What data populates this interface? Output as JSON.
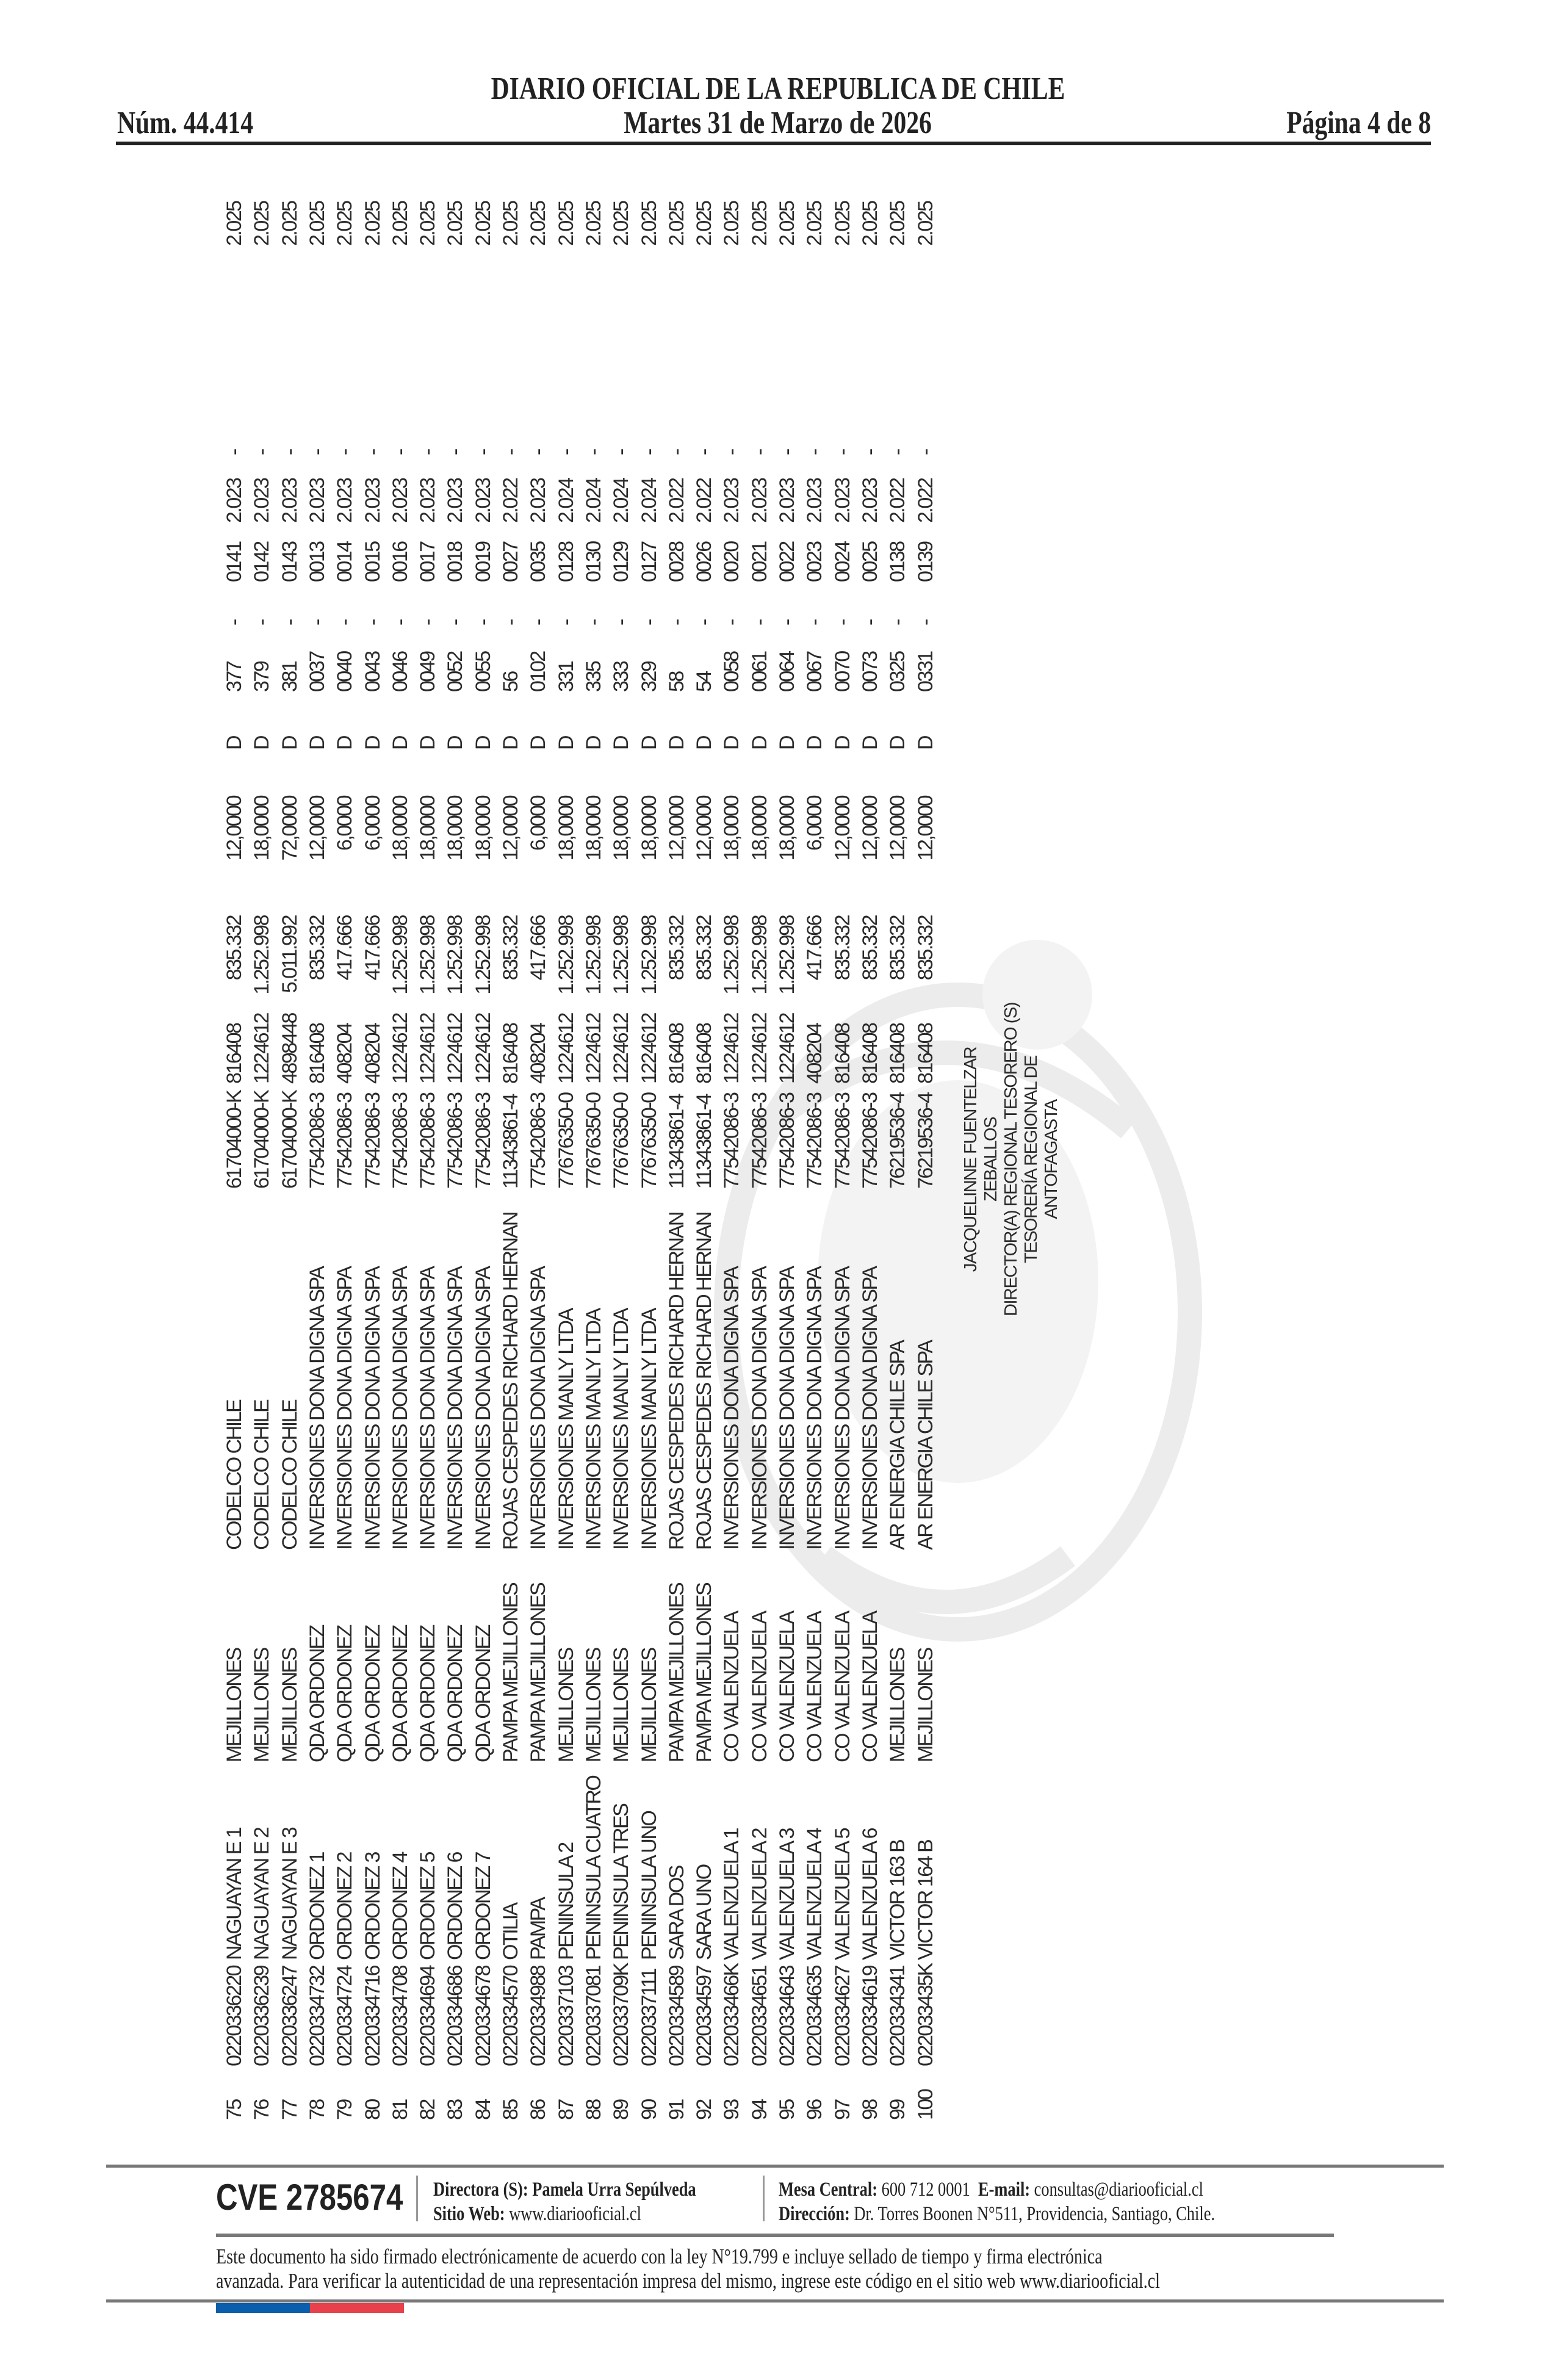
{
  "header": {
    "title": "DIARIO OFICIAL DE LA REPUBLICA DE CHILE",
    "issue_number": "Núm. 44.414",
    "date": "Martes 31 de Marzo de 2026",
    "page": "Página 4 de 8"
  },
  "table": {
    "rows": [
      [
        "75",
        "0220336220",
        "NAGUAYAN E 1",
        "MEJILLONES",
        "CODELCO CHILE",
        "61704000-K",
        "816408",
        "835.332",
        "12,0000",
        "D",
        "377",
        "-",
        "0141",
        "2.023",
        "-",
        "2.025"
      ],
      [
        "76",
        "0220336239",
        "NAGUAYAN E 2",
        "MEJILLONES",
        "CODELCO CHILE",
        "61704000-K",
        "1224612",
        "1.252.998",
        "18,0000",
        "D",
        "379",
        "-",
        "0142",
        "2.023",
        "-",
        "2.025"
      ],
      [
        "77",
        "0220336247",
        "NAGUAYAN E 3",
        "MEJILLONES",
        "CODELCO CHILE",
        "61704000-K",
        "4898448",
        "5.011.992",
        "72,0000",
        "D",
        "381",
        "-",
        "0143",
        "2.023",
        "-",
        "2.025"
      ],
      [
        "78",
        "0220334732",
        "ORDONEZ 1",
        "QDA ORDONEZ",
        "INVERSIONES DONA DIGNA SPA",
        "77542086-3",
        "816408",
        "835.332",
        "12,0000",
        "D",
        "0037",
        "-",
        "0013",
        "2.023",
        "-",
        "2.025"
      ],
      [
        "79",
        "0220334724",
        "ORDONEZ 2",
        "QDA ORDONEZ",
        "INVERSIONES DONA DIGNA SPA",
        "77542086-3",
        "408204",
        "417.666",
        "6,0000",
        "D",
        "0040",
        "-",
        "0014",
        "2.023",
        "-",
        "2.025"
      ],
      [
        "80",
        "0220334716",
        "ORDONEZ 3",
        "QDA ORDONEZ",
        "INVERSIONES DONA DIGNA SPA",
        "77542086-3",
        "408204",
        "417.666",
        "6,0000",
        "D",
        "0043",
        "-",
        "0015",
        "2.023",
        "-",
        "2.025"
      ],
      [
        "81",
        "0220334708",
        "ORDONEZ 4",
        "QDA ORDONEZ",
        "INVERSIONES DONA DIGNA SPA",
        "77542086-3",
        "1224612",
        "1.252.998",
        "18,0000",
        "D",
        "0046",
        "-",
        "0016",
        "2.023",
        "-",
        "2.025"
      ],
      [
        "82",
        "0220334694",
        "ORDONEZ 5",
        "QDA ORDONEZ",
        "INVERSIONES DONA DIGNA SPA",
        "77542086-3",
        "1224612",
        "1.252.998",
        "18,0000",
        "D",
        "0049",
        "-",
        "0017",
        "2.023",
        "-",
        "2.025"
      ],
      [
        "83",
        "0220334686",
        "ORDONEZ 6",
        "QDA ORDONEZ",
        "INVERSIONES DONA DIGNA SPA",
        "77542086-3",
        "1224612",
        "1.252.998",
        "18,0000",
        "D",
        "0052",
        "-",
        "0018",
        "2.023",
        "-",
        "2.025"
      ],
      [
        "84",
        "0220334678",
        "ORDONEZ 7",
        "QDA ORDONEZ",
        "INVERSIONES DONA DIGNA SPA",
        "77542086-3",
        "1224612",
        "1.252.998",
        "18,0000",
        "D",
        "0055",
        "-",
        "0019",
        "2.023",
        "-",
        "2.025"
      ],
      [
        "85",
        "0220334570",
        "OTILIA",
        "PAMPA MEJILLONES",
        "ROJAS CESPEDES RICHARD HERNAN",
        "11343861-4",
        "816408",
        "835.332",
        "12,0000",
        "D",
        "56",
        "-",
        "0027",
        "2.022",
        "-",
        "2.025"
      ],
      [
        "86",
        "0220334988",
        "PAMPA",
        "PAMPA MEJILLONES",
        "INVERSIONES DONA DIGNA SPA",
        "77542086-3",
        "408204",
        "417.666",
        "6,0000",
        "D",
        "0102",
        "-",
        "0035",
        "2.023",
        "-",
        "2.025"
      ],
      [
        "87",
        "0220337103",
        "PENINSULA 2",
        "MEJILLONES",
        "INVERSIONES MANLY LTDA",
        "77676350-0",
        "1224612",
        "1.252.998",
        "18,0000",
        "D",
        "331",
        "-",
        "0128",
        "2.024",
        "-",
        "2.025"
      ],
      [
        "88",
        "0220337081",
        "PENINSULA CUATRO",
        "MEJILLONES",
        "INVERSIONES MANLY LTDA",
        "77676350-0",
        "1224612",
        "1.252.998",
        "18,0000",
        "D",
        "335",
        "-",
        "0130",
        "2.024",
        "-",
        "2.025"
      ],
      [
        "89",
        "022033709K",
        "PENINSULA TRES",
        "MEJILLONES",
        "INVERSIONES MANLY LTDA",
        "77676350-0",
        "1224612",
        "1.252.998",
        "18,0000",
        "D",
        "333",
        "-",
        "0129",
        "2.024",
        "-",
        "2.025"
      ],
      [
        "90",
        "0220337111",
        "PENINSULA UNO",
        "MEJILLONES",
        "INVERSIONES MANLY LTDA",
        "77676350-0",
        "1224612",
        "1.252.998",
        "18,0000",
        "D",
        "329",
        "-",
        "0127",
        "2.024",
        "-",
        "2.025"
      ],
      [
        "91",
        "0220334589",
        "SARA DOS",
        "PAMPA MEJILLONES",
        "ROJAS CESPEDES RICHARD HERNAN",
        "11343861-4",
        "816408",
        "835.332",
        "12,0000",
        "D",
        "58",
        "-",
        "0028",
        "2.022",
        "-",
        "2.025"
      ],
      [
        "92",
        "0220334597",
        "SARA UNO",
        "PAMPA MEJILLONES",
        "ROJAS CESPEDES RICHARD HERNAN",
        "11343861-4",
        "816408",
        "835.332",
        "12,0000",
        "D",
        "54",
        "-",
        "0026",
        "2.022",
        "-",
        "2.025"
      ],
      [
        "93",
        "022033466K",
        "VALENZUELA 1",
        "CO VALENZUELA",
        "INVERSIONES DONA DIGNA SPA",
        "77542086-3",
        "1224612",
        "1.252.998",
        "18,0000",
        "D",
        "0058",
        "-",
        "0020",
        "2.023",
        "-",
        "2.025"
      ],
      [
        "94",
        "0220334651",
        "VALENZUELA 2",
        "CO VALENZUELA",
        "INVERSIONES DONA DIGNA SPA",
        "77542086-3",
        "1224612",
        "1.252.998",
        "18,0000",
        "D",
        "0061",
        "-",
        "0021",
        "2.023",
        "-",
        "2.025"
      ],
      [
        "95",
        "0220334643",
        "VALENZUELA 3",
        "CO VALENZUELA",
        "INVERSIONES DONA DIGNA SPA",
        "77542086-3",
        "1224612",
        "1.252.998",
        "18,0000",
        "D",
        "0064",
        "-",
        "0022",
        "2.023",
        "-",
        "2.025"
      ],
      [
        "96",
        "0220334635",
        "VALENZUELA 4",
        "CO VALENZUELA",
        "INVERSIONES DONA DIGNA SPA",
        "77542086-3",
        "408204",
        "417.666",
        "6,0000",
        "D",
        "0067",
        "-",
        "0023",
        "2.023",
        "-",
        "2.025"
      ],
      [
        "97",
        "0220334627",
        "VALENZUELA 5",
        "CO VALENZUELA",
        "INVERSIONES DONA DIGNA SPA",
        "77542086-3",
        "816408",
        "835.332",
        "12,0000",
        "D",
        "0070",
        "-",
        "0024",
        "2.023",
        "-",
        "2.025"
      ],
      [
        "98",
        "0220334619",
        "VALENZUELA 6",
        "CO VALENZUELA",
        "INVERSIONES DONA DIGNA SPA",
        "77542086-3",
        "816408",
        "835.332",
        "12,0000",
        "D",
        "0073",
        "-",
        "0025",
        "2.023",
        "-",
        "2.025"
      ],
      [
        "99",
        "0220334341",
        "VICTOR 163 B",
        "MEJILLONES",
        "AR ENERGIA CHILE SPA",
        "76219536-4",
        "816408",
        "835.332",
        "12,0000",
        "D",
        "0325",
        "-",
        "0138",
        "2.022",
        "-",
        "2.025"
      ],
      [
        "100",
        "022033435K",
        "VICTOR 164 B",
        "MEJILLONES",
        "AR ENERGIA CHILE SPA",
        "76219536-4",
        "816408",
        "835.332",
        "12,0000",
        "D",
        "0331",
        "-",
        "0139",
        "2.022",
        "-",
        "2.025"
      ]
    ]
  },
  "signature": {
    "lines": [
      "JACQUELINNE FUENTELZAR",
      "ZEBALLOS",
      "DIRECTOR(A) REGIONAL TESORERO (S)",
      "TESORERÍA REGIONAL DE",
      "ANTOFAGASTA"
    ]
  },
  "footer": {
    "cve": "CVE 2785674",
    "director_label": "Directora (S):",
    "director_name": "Pamela Urra Sepúlveda",
    "web_label": "Sitio Web:",
    "web_value": "www.diariooficial.cl",
    "phone_label": "Mesa Central:",
    "phone_value": "600 712 0001",
    "email_label": "E-mail:",
    "email_value": "consultas@diariooficial.cl",
    "address_label": "Dirección:",
    "address_value": "Dr. Torres Boonen N°511, Providencia, Santiago, Chile.",
    "legal_line1": "Este documento ha sido firmado electrónicamente de acuerdo con la ley N°19.799 e incluye sellado de tiempo y firma electrónica",
    "legal_line2": "avanzada. Para verificar la autenticidad de una representación impresa del mismo, ingrese este código en el sitio web www.diariooficial.cl"
  },
  "colors": {
    "flag_blue": "#0b5eac",
    "flag_red": "#e8414b",
    "rule": "#777777",
    "watermark": "#eeeeee"
  },
  "watermark_icon": "chilean-coat-of-arms"
}
